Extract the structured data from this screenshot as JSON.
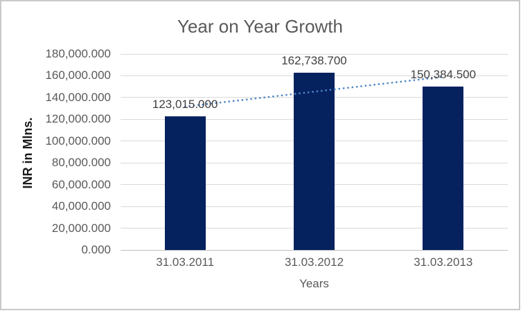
{
  "chart_data": {
    "type": "bar",
    "title": "Year on Year Growth",
    "xlabel": "Years",
    "ylabel": "INR in Mlns.",
    "categories": [
      "31.03.2011",
      "31.03.2012",
      "31.03.2013"
    ],
    "values": [
      123015.0,
      162738.7,
      150384.5
    ],
    "data_labels": [
      "123,015.000",
      "162,738.700",
      "150,384.500"
    ],
    "ylim": [
      0,
      180000
    ],
    "ytick_step": 20000,
    "ytick_labels": [
      "0.000",
      "20,000.000",
      "40,000.000",
      "60,000.000",
      "80,000.000",
      "100,000.000",
      "120,000.000",
      "140,000.000",
      "160,000.000",
      "180,000.000"
    ],
    "grid": true,
    "legend": "none",
    "trendline": {
      "type": "linear",
      "style": "dotted"
    },
    "colors": {
      "bar": "#05225f",
      "trendline": "#4e86c6",
      "gridline": "#d9d9d9",
      "axis_line": "#bfbfbf",
      "axis_text": "#595959",
      "data_label_text": "#404040",
      "title_text": "#595959",
      "y_axis_title_text": "#1a1a1a",
      "border": "#c9c9c9",
      "background": "#ffffff"
    }
  }
}
